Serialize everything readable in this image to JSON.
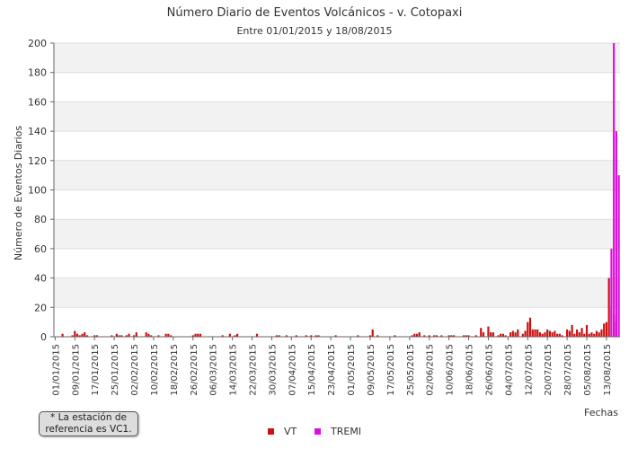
{
  "colors": {
    "vt": "#cc1111",
    "tremi": "#dd11dd",
    "band": "#f2f2f2",
    "grid": "#dddddd",
    "axis": "#666666"
  },
  "chart_data": {
    "type": "bar",
    "title": "Número Diario de Eventos Volcánicos -  v. Cotopaxi",
    "subtitle": "Entre 01/01/2015 y 18/08/2015",
    "xlabel": "Fechas",
    "ylabel": "Número de Eventos Diarios",
    "ylim": [
      0,
      200
    ],
    "yticks": [
      0,
      20,
      40,
      60,
      80,
      100,
      120,
      140,
      160,
      180,
      200
    ],
    "grid": true,
    "legend": "bottom-center",
    "xtick_labels": [
      "01/01/2015",
      "09/01/2015",
      "17/01/2015",
      "25/01/2015",
      "02/02/2015",
      "10/02/2015",
      "18/02/2015",
      "26/02/2015",
      "06/03/2015",
      "14/03/2015",
      "22/03/2015",
      "30/03/2015",
      "07/04/2015",
      "15/04/2015",
      "23/04/2015",
      "01/05/2015",
      "09/05/2015",
      "17/05/2015",
      "25/05/2015",
      "02/06/2015",
      "10/06/2015",
      "18/06/2015",
      "26/06/2015",
      "04/07/2015",
      "12/07/2015",
      "20/07/2015",
      "28/07/2015",
      "05/08/2015",
      "13/08/2015"
    ],
    "start_date": "2015-01-01",
    "num_days": 230,
    "series": [
      {
        "name": "VT",
        "color": "#cc1111",
        "points": [
          [
            "2015-01-04",
            2
          ],
          [
            "2015-01-08",
            1
          ],
          [
            "2015-01-09",
            4
          ],
          [
            "2015-01-10",
            2
          ],
          [
            "2015-01-11",
            1
          ],
          [
            "2015-01-12",
            2
          ],
          [
            "2015-01-13",
            3
          ],
          [
            "2015-01-14",
            1
          ],
          [
            "2015-01-17",
            1
          ],
          [
            "2015-01-18",
            1
          ],
          [
            "2015-01-24",
            1
          ],
          [
            "2015-01-26",
            2
          ],
          [
            "2015-01-27",
            1
          ],
          [
            "2015-01-28",
            1
          ],
          [
            "2015-01-30",
            1
          ],
          [
            "2015-01-31",
            2
          ],
          [
            "2015-02-02",
            1
          ],
          [
            "2015-02-03",
            3
          ],
          [
            "2015-02-07",
            3
          ],
          [
            "2015-02-08",
            2
          ],
          [
            "2015-02-09",
            1
          ],
          [
            "2015-02-12",
            1
          ],
          [
            "2015-02-15",
            2
          ],
          [
            "2015-02-16",
            2
          ],
          [
            "2015-02-17",
            1
          ],
          [
            "2015-02-26",
            1
          ],
          [
            "2015-02-27",
            2
          ],
          [
            "2015-02-28",
            2
          ],
          [
            "2015-03-01",
            2
          ],
          [
            "2015-03-10",
            1
          ],
          [
            "2015-03-13",
            2
          ],
          [
            "2015-03-15",
            1
          ],
          [
            "2015-03-16",
            2
          ],
          [
            "2015-03-24",
            2
          ],
          [
            "2015-04-01",
            1
          ],
          [
            "2015-04-02",
            1
          ],
          [
            "2015-04-05",
            1
          ],
          [
            "2015-04-09",
            1
          ],
          [
            "2015-04-13",
            1
          ],
          [
            "2015-04-15",
            1
          ],
          [
            "2015-04-17",
            1
          ],
          [
            "2015-04-18",
            1
          ],
          [
            "2015-04-25",
            1
          ],
          [
            "2015-05-04",
            1
          ],
          [
            "2015-05-09",
            1
          ],
          [
            "2015-05-10",
            5
          ],
          [
            "2015-05-12",
            1
          ],
          [
            "2015-05-19",
            1
          ],
          [
            "2015-05-26",
            1
          ],
          [
            "2015-05-27",
            2
          ],
          [
            "2015-05-28",
            2
          ],
          [
            "2015-05-29",
            3
          ],
          [
            "2015-05-31",
            1
          ],
          [
            "2015-06-02",
            1
          ],
          [
            "2015-06-04",
            1
          ],
          [
            "2015-06-05",
            1
          ],
          [
            "2015-06-07",
            1
          ],
          [
            "2015-06-10",
            1
          ],
          [
            "2015-06-11",
            1
          ],
          [
            "2015-06-12",
            1
          ],
          [
            "2015-06-16",
            1
          ],
          [
            "2015-06-17",
            1
          ],
          [
            "2015-06-18",
            1
          ],
          [
            "2015-06-21",
            1
          ],
          [
            "2015-06-23",
            6
          ],
          [
            "2015-06-24",
            3
          ],
          [
            "2015-06-26",
            7
          ],
          [
            "2015-06-27",
            3
          ],
          [
            "2015-06-28",
            3
          ],
          [
            "2015-06-30",
            1
          ],
          [
            "2015-07-01",
            2
          ],
          [
            "2015-07-02",
            2
          ],
          [
            "2015-07-03",
            1
          ],
          [
            "2015-07-05",
            3
          ],
          [
            "2015-07-06",
            4
          ],
          [
            "2015-07-07",
            3
          ],
          [
            "2015-07-08",
            5
          ],
          [
            "2015-07-10",
            2
          ],
          [
            "2015-07-11",
            4
          ],
          [
            "2015-07-12",
            10
          ],
          [
            "2015-07-13",
            13
          ],
          [
            "2015-07-14",
            5
          ],
          [
            "2015-07-15",
            5
          ],
          [
            "2015-07-16",
            5
          ],
          [
            "2015-07-17",
            3
          ],
          [
            "2015-07-18",
            2
          ],
          [
            "2015-07-19",
            3
          ],
          [
            "2015-07-20",
            5
          ],
          [
            "2015-07-21",
            4
          ],
          [
            "2015-07-22",
            3
          ],
          [
            "2015-07-23",
            4
          ],
          [
            "2015-07-24",
            2
          ],
          [
            "2015-07-25",
            2
          ],
          [
            "2015-07-26",
            1
          ],
          [
            "2015-07-28",
            5
          ],
          [
            "2015-07-29",
            4
          ],
          [
            "2015-07-30",
            8
          ],
          [
            "2015-07-31",
            2
          ],
          [
            "2015-08-01",
            5
          ],
          [
            "2015-08-02",
            3
          ],
          [
            "2015-08-03",
            6
          ],
          [
            "2015-08-04",
            2
          ],
          [
            "2015-08-05",
            8
          ],
          [
            "2015-08-06",
            2
          ],
          [
            "2015-08-07",
            3
          ],
          [
            "2015-08-08",
            2
          ],
          [
            "2015-08-09",
            4
          ],
          [
            "2015-08-10",
            3
          ],
          [
            "2015-08-11",
            5
          ],
          [
            "2015-08-12",
            9
          ],
          [
            "2015-08-13",
            10
          ],
          [
            "2015-08-14",
            40
          ],
          [
            "2015-08-15",
            20
          ],
          [
            "2015-08-16",
            15
          ],
          [
            "2015-08-17",
            10
          ]
        ]
      },
      {
        "name": "TREMI",
        "color": "#dd11dd",
        "points": [
          [
            "2015-08-15",
            60
          ],
          [
            "2015-08-16",
            200
          ],
          [
            "2015-08-17",
            140
          ],
          [
            "2015-08-18",
            110
          ]
        ]
      }
    ]
  },
  "note": "* La estación de\nreferencia es VC1."
}
